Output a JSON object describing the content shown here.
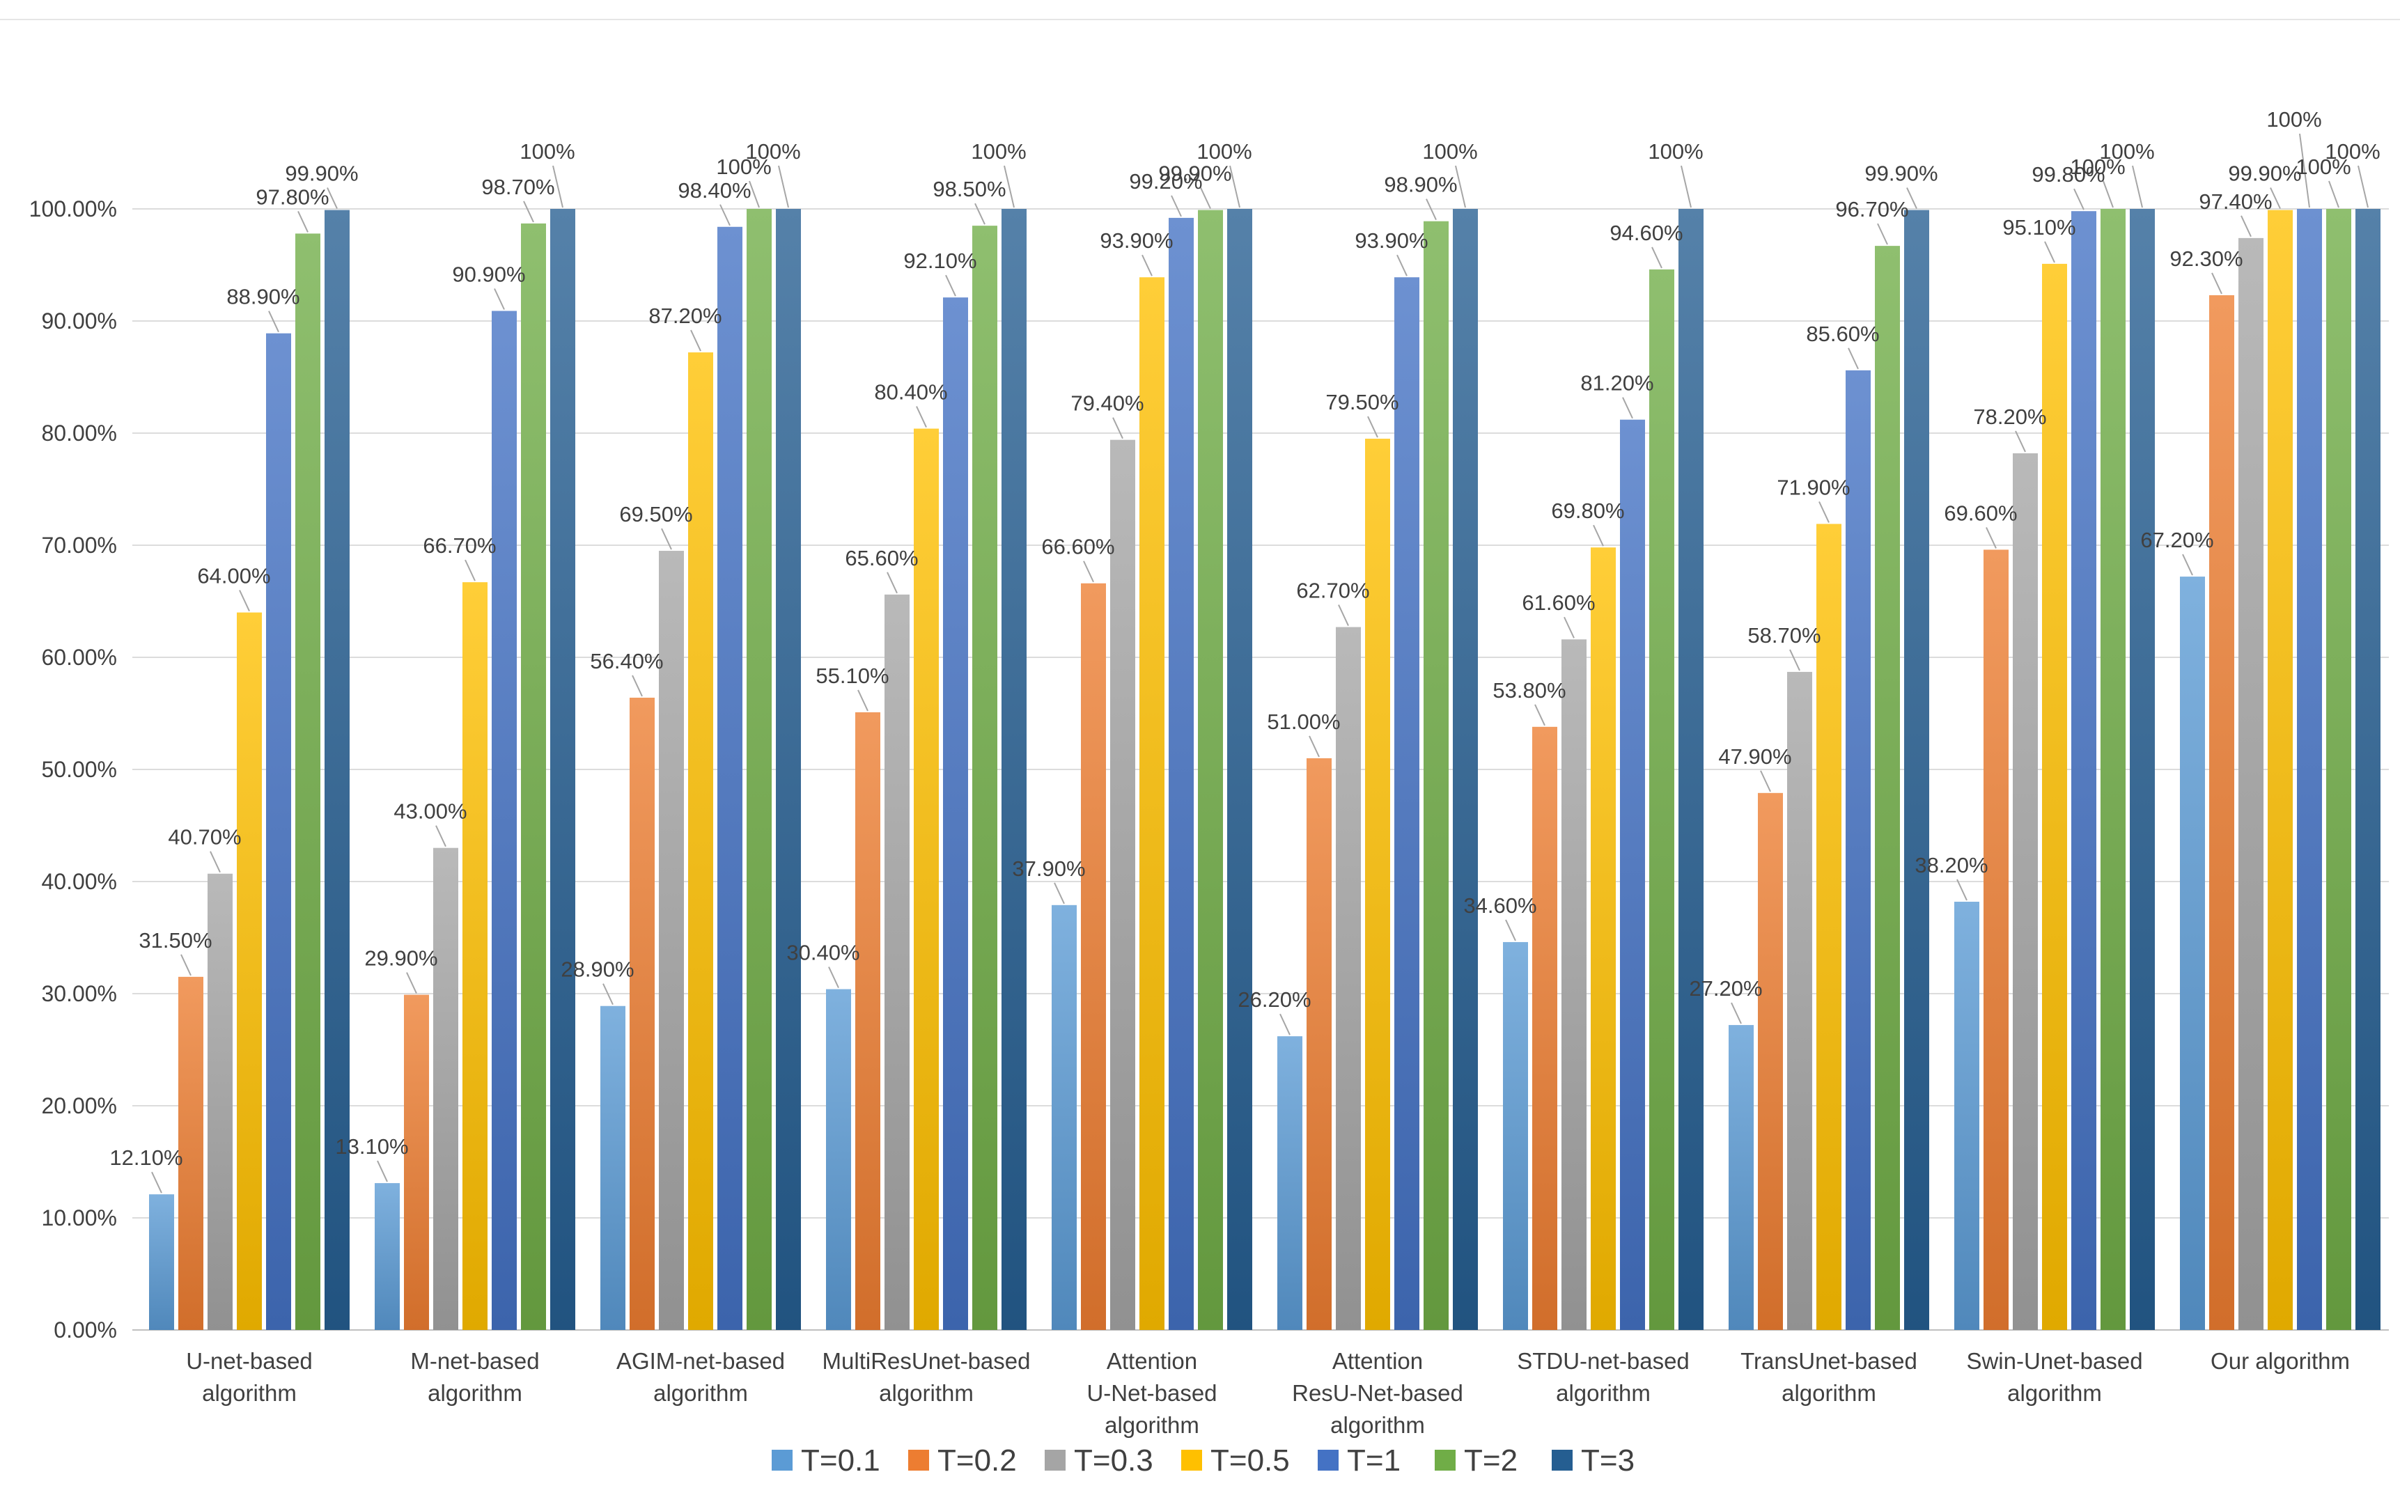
{
  "chart_data": {
    "type": "bar",
    "title": "",
    "xlabel": "",
    "ylabel": "",
    "ylim": [
      0,
      100
    ],
    "yticks": [
      "0.00%",
      "10.00%",
      "20.00%",
      "30.00%",
      "40.00%",
      "50.00%",
      "60.00%",
      "70.00%",
      "80.00%",
      "90.00%",
      "100.00%"
    ],
    "grid": true,
    "legend_position": "bottom",
    "categories": [
      [
        "U-net-based",
        "algorithm"
      ],
      [
        "M-net-based",
        "algorithm"
      ],
      [
        "AGIM-net-based",
        "algorithm"
      ],
      [
        "MultiResUnet-based",
        "algorithm"
      ],
      [
        "Attention",
        "U-Net-based",
        "algorithm"
      ],
      [
        "Attention",
        "ResU-Net-based",
        "algorithm"
      ],
      [
        "STDU-net-based",
        "algorithm"
      ],
      [
        "TransUnet-based",
        "algorithm"
      ],
      [
        "Swin-Unet-based",
        "algorithm"
      ],
      [
        "Our algorithm"
      ]
    ],
    "series": [
      {
        "name": "T=0.1",
        "color": "#5B9BD5",
        "values": [
          12.1,
          13.1,
          28.9,
          30.4,
          37.9,
          26.2,
          34.6,
          27.2,
          38.2,
          67.2
        ],
        "labels": [
          "12.10%",
          "13.10%",
          "28.90%",
          "30.40%",
          "37.90%",
          "26.20%",
          "34.60%",
          "27.20%",
          "38.20%",
          "67.20%"
        ]
      },
      {
        "name": "T=0.2",
        "color": "#ED7D31",
        "values": [
          31.5,
          29.9,
          56.4,
          55.1,
          66.6,
          51.0,
          53.8,
          47.9,
          69.6,
          92.3
        ],
        "labels": [
          "31.50%",
          "29.90%",
          "56.40%",
          "55.10%",
          "66.60%",
          "51.00%",
          "53.80%",
          "47.90%",
          "69.60%",
          "92.30%"
        ]
      },
      {
        "name": "T=0.3",
        "color": "#A5A5A5",
        "values": [
          40.7,
          43.0,
          69.5,
          65.6,
          79.4,
          62.7,
          61.6,
          58.7,
          78.2,
          97.4
        ],
        "labels": [
          "40.70%",
          "43.00%",
          "69.50%",
          "65.60%",
          "79.40%",
          "62.70%",
          "61.60%",
          "58.70%",
          "78.20%",
          "97.40%"
        ]
      },
      {
        "name": "T=0.5",
        "color": "#FFC000",
        "values": [
          64.0,
          66.7,
          87.2,
          80.4,
          93.9,
          79.5,
          69.8,
          71.9,
          95.1,
          99.9
        ],
        "labels": [
          "64.00%",
          "66.70%",
          "87.20%",
          "80.40%",
          "93.90%",
          "79.50%",
          "69.80%",
          "71.90%",
          "95.10%",
          "99.90%"
        ]
      },
      {
        "name": "T=1",
        "color": "#4472C4",
        "values": [
          88.9,
          90.9,
          98.4,
          92.1,
          99.2,
          93.9,
          81.2,
          85.6,
          99.8,
          100
        ],
        "labels": [
          "88.90%",
          "90.90%",
          "98.40%",
          "92.10%",
          "99.20%",
          "93.90%",
          "81.20%",
          "85.60%",
          "99.80%",
          "100%"
        ]
      },
      {
        "name": "T=2",
        "color": "#70AD47",
        "values": [
          97.8,
          98.7,
          100,
          98.5,
          99.9,
          98.9,
          94.6,
          96.7,
          100,
          100
        ],
        "labels": [
          "97.80%",
          "98.70%",
          "100%",
          "98.50%",
          "99.90%",
          "98.90%",
          "94.60%",
          "96.70%",
          "100%",
          "100%"
        ]
      },
      {
        "name": "T=3",
        "color": "#255E91",
        "values": [
          99.9,
          100,
          100,
          100,
          100,
          100,
          100,
          99.9,
          100,
          100
        ],
        "labels": [
          "99.90%",
          "100%",
          "100%",
          "100%",
          "100%",
          "100%",
          "100%",
          "99.90%",
          "100%",
          "100%"
        ]
      }
    ]
  }
}
